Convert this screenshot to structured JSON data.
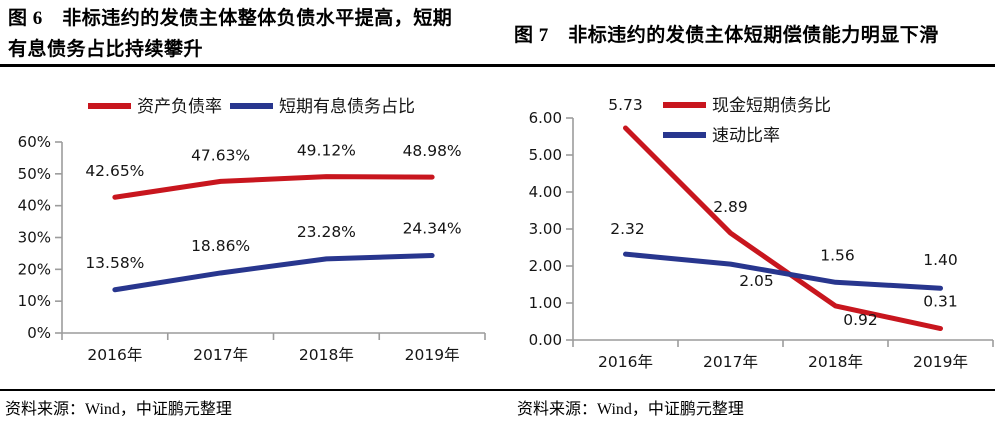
{
  "sources": {
    "left": "资料来源：Wind，中证鹏元整理",
    "right": "资料来源：Wind，中证鹏元整理"
  },
  "colors": {
    "series_red": "#C8161E",
    "series_blue": "#28368E",
    "axis_gray": "#9C9C9C",
    "rule_black": "#000000"
  },
  "chart_data": [
    {
      "type": "line",
      "title": "图 6　非标违约的发债主体整体负债水平提高，短期有息债务占比持续攀升",
      "title_lines": [
        "图 6　非标违约的发债主体整体负债水平提高，短期",
        "有息债务占比持续攀升"
      ],
      "categories": [
        "2016年",
        "2017年",
        "2018年",
        "2019年"
      ],
      "series": [
        {
          "name": "资产负债率",
          "color": "#C8161E",
          "values": [
            42.65,
            47.63,
            49.12,
            48.98
          ],
          "labels": [
            "42.65%",
            "47.63%",
            "49.12%",
            "48.98%"
          ],
          "label_offsets": [
            [
              0,
              -26
            ],
            [
              0,
              -26
            ],
            [
              0,
              -26
            ],
            [
              0,
              -26
            ]
          ]
        },
        {
          "name": "短期有息债务占比",
          "color": "#28368E",
          "values": [
            13.58,
            18.86,
            23.28,
            24.34
          ],
          "labels": [
            "13.58%",
            "18.86%",
            "23.28%",
            "24.34%"
          ],
          "label_offsets": [
            [
              0,
              -27
            ],
            [
              0,
              -27
            ],
            [
              0,
              -27
            ],
            [
              0,
              -27
            ]
          ]
        }
      ],
      "ylim": [
        0,
        60
      ],
      "ytick_labels": [
        "0%",
        "10%",
        "20%",
        "30%",
        "40%",
        "50%",
        "60%"
      ],
      "grid": false,
      "legend_position": "top-center-row",
      "source": "资料来源：Wind，中证鹏元整理"
    },
    {
      "type": "line",
      "title": "图 7　非标违约的发债主体短期偿债能力明显下滑",
      "title_lines": [
        "图 7　非标违约的发债主体短期偿债能力明显下滑"
      ],
      "categories": [
        "2016年",
        "2017年",
        "2018年",
        "2019年"
      ],
      "series": [
        {
          "name": "现金短期债务比",
          "color": "#C8161E",
          "values": [
            5.73,
            2.89,
            0.92,
            0.31
          ],
          "labels": [
            "5.73",
            "2.89",
            "0.92",
            "0.31"
          ],
          "label_offsets": [
            [
              0,
              -23
            ],
            [
              0,
              -26
            ],
            [
              25,
              14
            ],
            [
              0,
              -27
            ]
          ]
        },
        {
          "name": "速动比率",
          "color": "#28368E",
          "values": [
            2.32,
            2.05,
            1.56,
            1.4
          ],
          "labels": [
            "2.32",
            "2.05",
            "1.56",
            "1.40"
          ],
          "label_offsets": [
            [
              2,
              -25
            ],
            [
              26,
              17
            ],
            [
              2,
              -27
            ],
            [
              0,
              -28
            ]
          ]
        }
      ],
      "ylim": [
        0,
        6
      ],
      "ytick_labels": [
        "0.00",
        "1.00",
        "2.00",
        "3.00",
        "4.00",
        "5.00",
        "6.00"
      ],
      "grid": false,
      "legend_position": "top-right-stack",
      "source": "资料来源：Wind，中证鹏元整理"
    }
  ]
}
